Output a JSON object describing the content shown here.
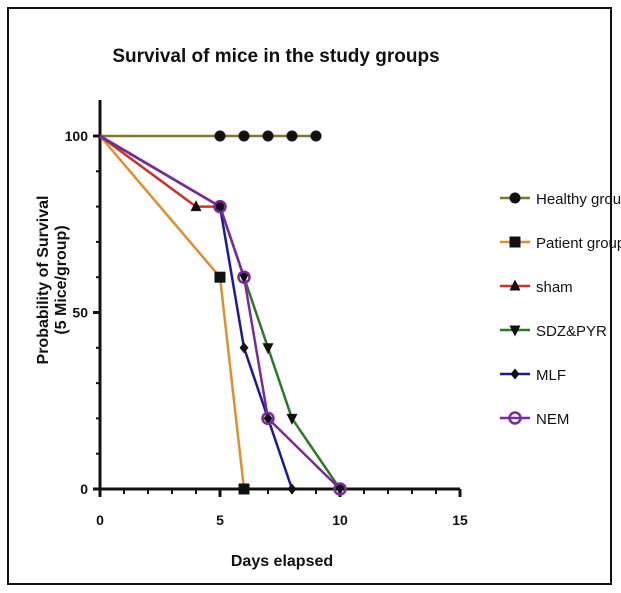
{
  "chart_data": {
    "type": "line",
    "title": "Survival of mice in the study groups",
    "xlabel": "Days elapsed",
    "ylabel": "Probability of Survival",
    "ylabel_sub": "(5 Mice/group)",
    "xlim": [
      0,
      15
    ],
    "ylim": [
      0,
      100
    ],
    "xticks": [
      0,
      5,
      10,
      15
    ],
    "yticks": [
      0,
      50,
      100
    ],
    "legend_position": "right",
    "grid": false,
    "series": [
      {
        "name": "Healthy group",
        "color": "#7a7a2a",
        "marker": "circle",
        "x": [
          0,
          5,
          6,
          7,
          8,
          9
        ],
        "y": [
          100,
          100,
          100,
          100,
          100,
          100
        ],
        "marker_points": [
          [
            5,
            100
          ],
          [
            6,
            100
          ],
          [
            7,
            100
          ],
          [
            8,
            100
          ],
          [
            9,
            100
          ]
        ]
      },
      {
        "name": "Patient group",
        "color": "#e0902a",
        "marker": "square",
        "x": [
          0,
          5,
          6
        ],
        "y": [
          100,
          60,
          0
        ],
        "marker_points": [
          [
            5,
            60
          ],
          [
            6,
            0
          ]
        ]
      },
      {
        "name": "sham",
        "color": "#d0302a",
        "marker": "triangle-up",
        "x": [
          0,
          4,
          5
        ],
        "y": [
          100,
          80,
          80
        ],
        "marker_points": [
          [
            4,
            80
          ],
          [
            5,
            80
          ]
        ]
      },
      {
        "name": "SDZ&PYR",
        "color": "#2a7a2a",
        "marker": "triangle-down",
        "x": [
          0,
          5,
          6,
          7,
          8,
          10
        ],
        "y": [
          100,
          80,
          60,
          40,
          20,
          0
        ],
        "marker_points": [
          [
            5,
            80
          ],
          [
            6,
            60
          ],
          [
            7,
            40
          ],
          [
            8,
            20
          ],
          [
            10,
            0
          ]
        ]
      },
      {
        "name": "MLF",
        "color": "#1a1aa0",
        "marker": "diamond",
        "x": [
          0,
          5,
          6,
          7,
          8
        ],
        "y": [
          100,
          80,
          40,
          20,
          0
        ],
        "marker_points": [
          [
            5,
            80
          ],
          [
            6,
            40
          ],
          [
            7,
            20
          ],
          [
            8,
            0
          ]
        ]
      },
      {
        "name": "NEM",
        "color": "#7a2a9a",
        "marker": "circle-open",
        "x": [
          0,
          5,
          6,
          7,
          10
        ],
        "y": [
          100,
          80,
          60,
          20,
          0
        ],
        "marker_points": [
          [
            5,
            80
          ],
          [
            6,
            60
          ],
          [
            7,
            20
          ],
          [
            10,
            0
          ]
        ]
      }
    ]
  }
}
